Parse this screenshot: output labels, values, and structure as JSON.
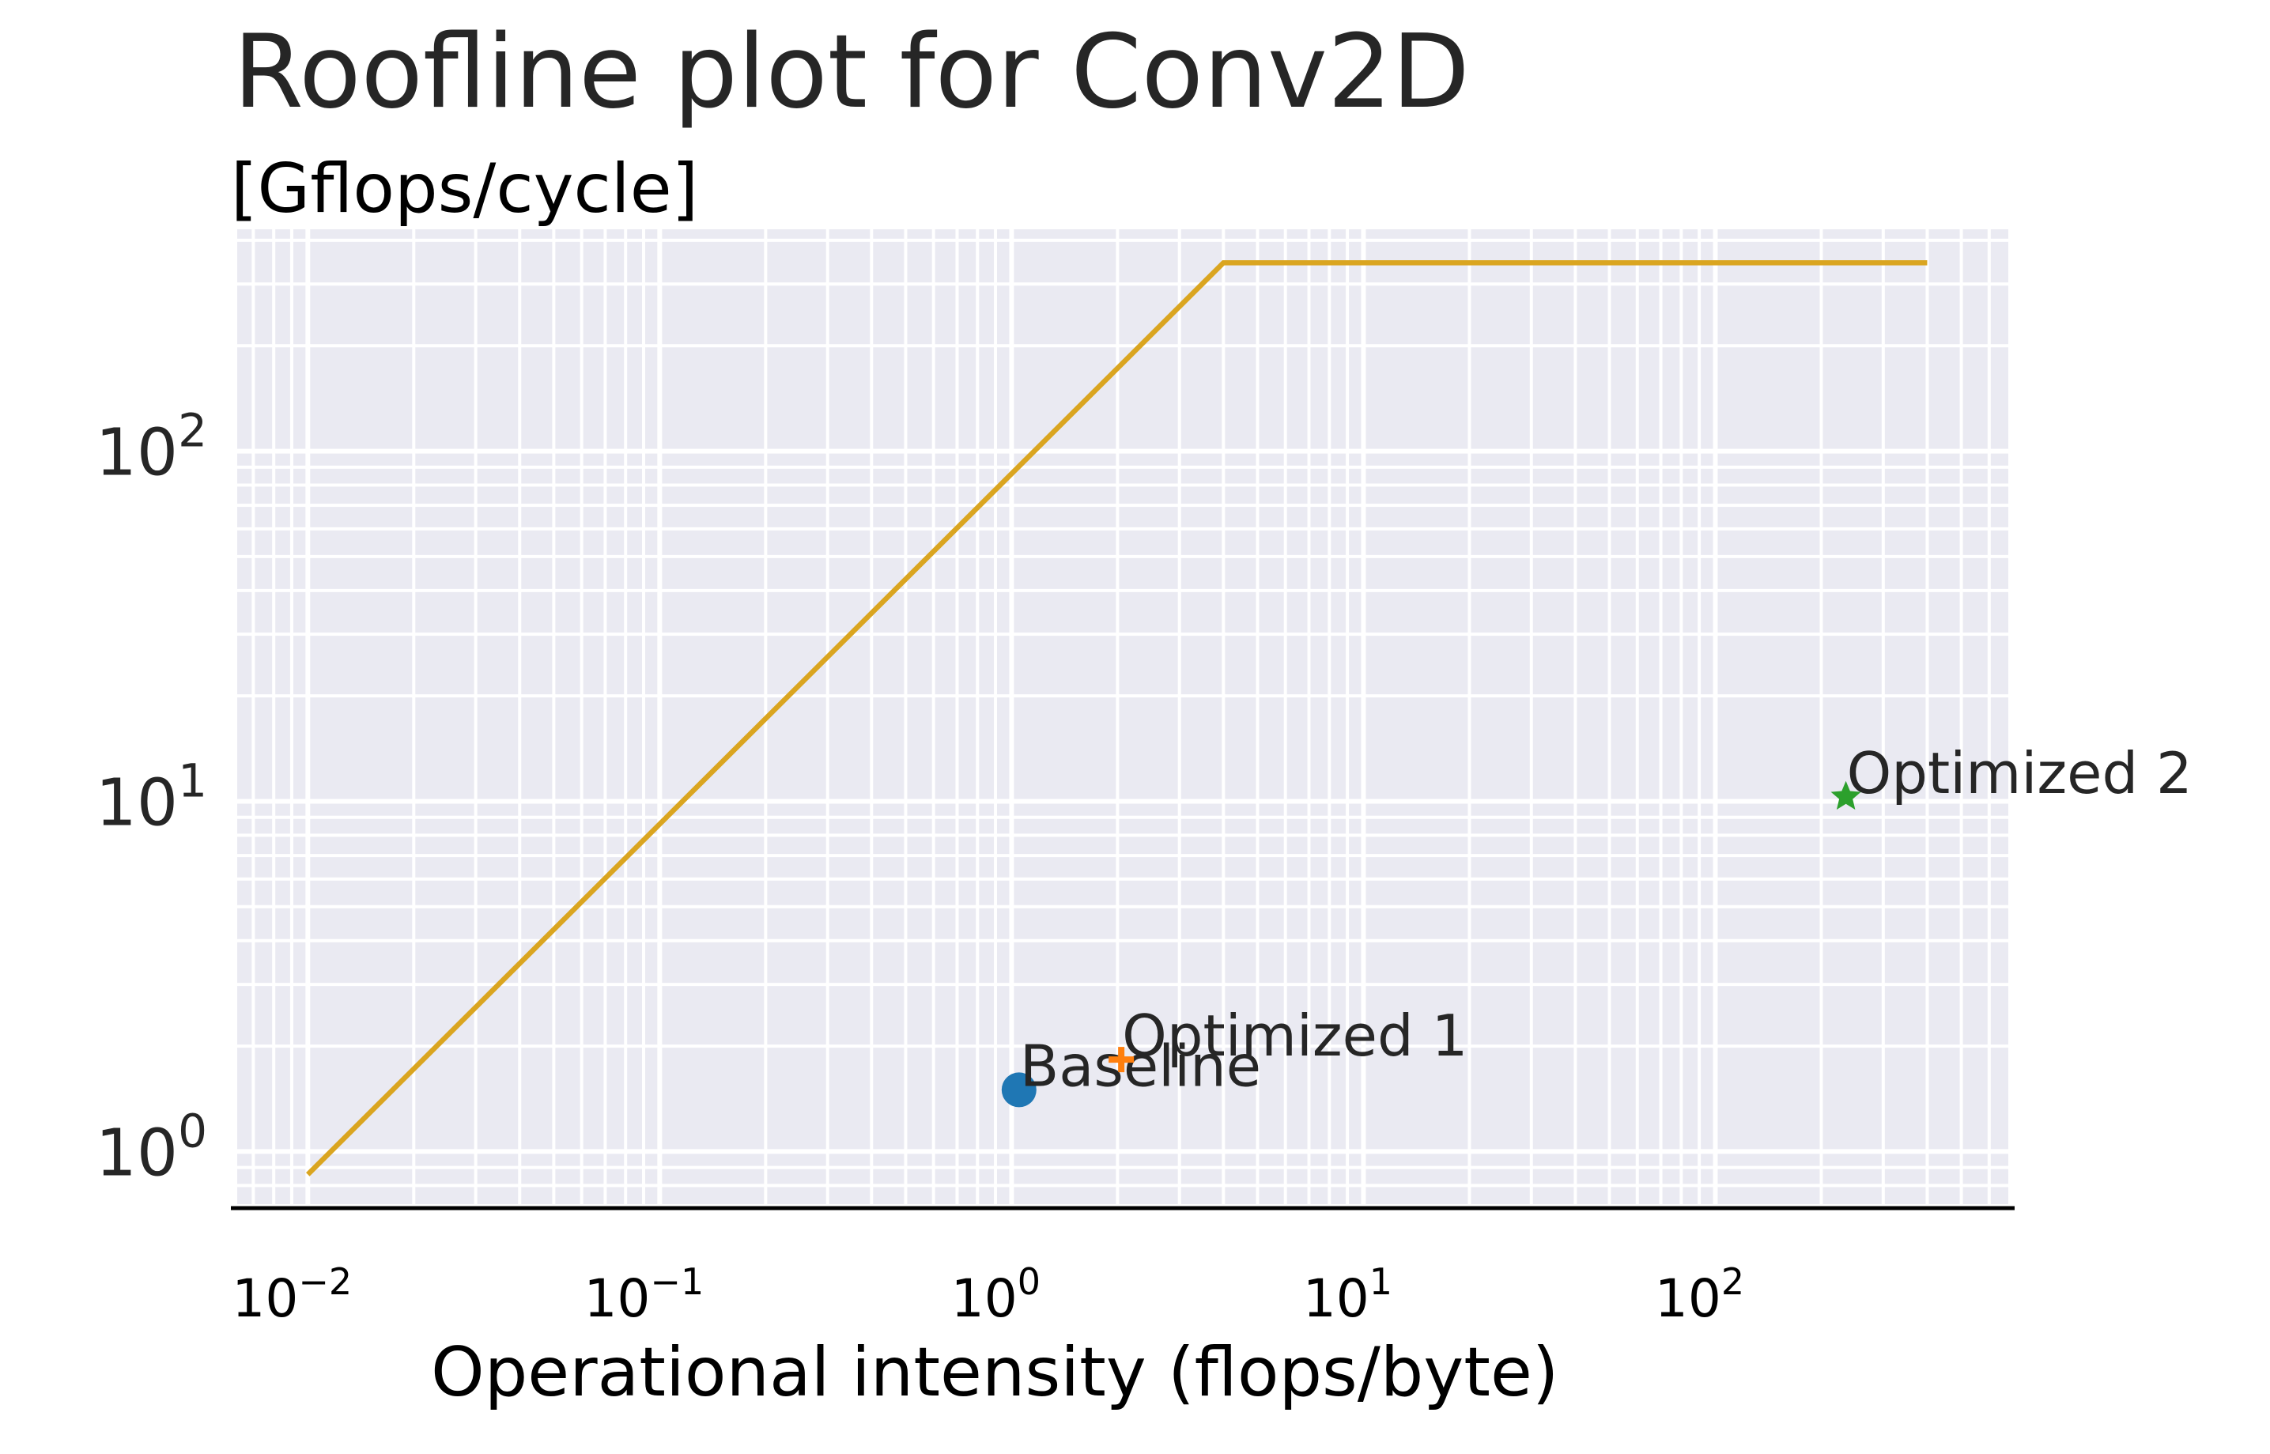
{
  "chart_data": {
    "type": "scatter",
    "title": "Roofline plot for Conv2D",
    "subtitle": "[Gflops/cycle]",
    "xlabel": "Operational intensity (flops/byte)",
    "ylabel": "",
    "xscale": "log",
    "yscale": "log",
    "xlim": [
      0.0063,
      680
    ],
    "ylim": [
      0.7,
      430
    ],
    "grid": "major and minor",
    "x_ticks": [
      {
        "value": 0.01,
        "base": "10",
        "exp": "−2"
      },
      {
        "value": 0.1,
        "base": "10",
        "exp": "−1"
      },
      {
        "value": 1,
        "base": "10",
        "exp": "0"
      },
      {
        "value": 10,
        "base": "10",
        "exp": "1"
      },
      {
        "value": 100,
        "base": "10",
        "exp": "2"
      }
    ],
    "y_ticks": [
      {
        "value": 1,
        "base": "10",
        "exp": "0"
      },
      {
        "value": 10,
        "base": "10",
        "exp": "1"
      },
      {
        "value": 100,
        "base": "10",
        "exp": "2"
      }
    ],
    "roofline": {
      "color": "#DAA520",
      "x": [
        0.01,
        4.0,
        400
      ],
      "y": [
        0.86,
        345,
        345
      ]
    },
    "points": [
      {
        "label": "Baseline",
        "x": 1.05,
        "y": 1.5,
        "marker": "circle",
        "color": "#1f77b4"
      },
      {
        "label": "Optimized 1",
        "x": 2.05,
        "y": 1.83,
        "marker": "plus",
        "color": "#ff7f0e"
      },
      {
        "label": "Optimized 2",
        "x": 235,
        "y": 10.3,
        "marker": "star",
        "color": "#2ca02c"
      }
    ]
  }
}
